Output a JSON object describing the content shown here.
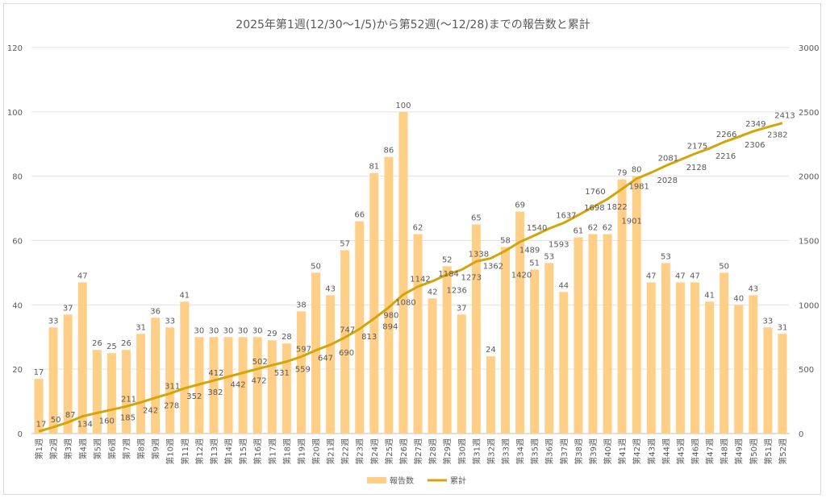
{
  "chart_data": {
    "type": "bar+line",
    "title": "2025年第1週(12/30〜1/5)から第52週(〜12/28)までの報告数と累計",
    "categories": [
      "第1週",
      "第2週",
      "第3週",
      "第4週",
      "第5週",
      "第6週",
      "第7週",
      "第8週",
      "第9週",
      "第10週",
      "第11週",
      "第12週",
      "第13週",
      "第14週",
      "第15週",
      "第16週",
      "第17週",
      "第18週",
      "第19週",
      "第20週",
      "第21週",
      "第22週",
      "第23週",
      "第24週",
      "第25週",
      "第26週",
      "第27週",
      "第28週",
      "第29週",
      "第30週",
      "第31週",
      "第32週",
      "第33週",
      "第34週",
      "第35週",
      "第36週",
      "第37週",
      "第38週",
      "第39週",
      "第40週",
      "第41週",
      "第42週",
      "第43週",
      "第44週",
      "第45週",
      "第46週",
      "第47週",
      "第48週",
      "第49週",
      "第50週",
      "第51週",
      "第52週"
    ],
    "series": [
      {
        "name": "報告数",
        "type": "bar",
        "axis": "left",
        "color": "#FFCF87",
        "values": [
          17,
          33,
          37,
          47,
          26,
          25,
          26,
          31,
          36,
          33,
          41,
          30,
          30,
          30,
          30,
          30,
          29,
          28,
          38,
          50,
          43,
          57,
          66,
          81,
          86,
          100,
          62,
          42,
          52,
          37,
          65,
          24,
          58,
          69,
          51,
          53,
          44,
          61,
          62,
          62,
          79,
          80,
          47,
          53,
          47,
          47,
          41,
          50,
          40,
          43,
          33,
          31
        ]
      },
      {
        "name": "累計",
        "type": "line",
        "axis": "right",
        "color": "#D4A50A",
        "values": [
          17,
          50,
          87,
          134,
          160,
          185,
          211,
          242,
          278,
          311,
          352,
          382,
          412,
          442,
          472,
          502,
          531,
          559,
          597,
          647,
          690,
          747,
          813,
          894,
          980,
          1080,
          1142,
          1184,
          1236,
          1273,
          1338,
          1362,
          1420,
          1489,
          1540,
          1593,
          1637,
          1698,
          1760,
          1822,
          1901,
          1981,
          2028,
          2081,
          2128,
          2175,
          2216,
          2266,
          2306,
          2349,
          2382,
          2413
        ]
      }
    ],
    "y_left": {
      "range": [
        0,
        120
      ],
      "ticks": [
        0,
        20,
        40,
        60,
        80,
        100,
        120
      ]
    },
    "y_right": {
      "range": [
        0,
        3000
      ],
      "ticks": [
        0,
        500,
        1000,
        1500,
        2000,
        2500,
        3000
      ]
    },
    "grid": true,
    "legend": "bottom"
  }
}
